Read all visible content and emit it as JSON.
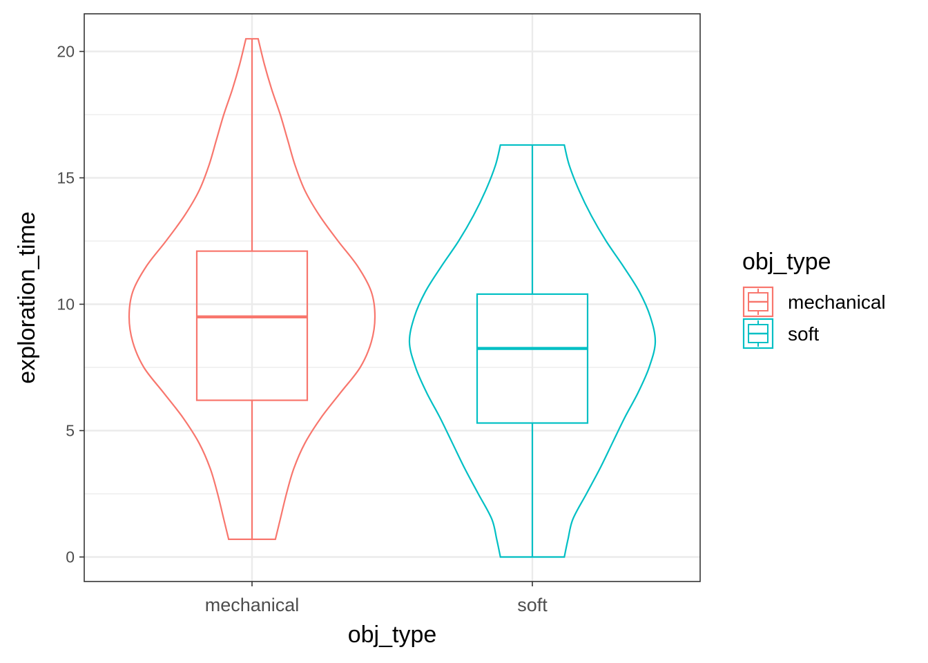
{
  "chart_data": {
    "type": "violin",
    "xlabel": "obj_type",
    "ylabel": "exploration_time",
    "ylim": [
      -1,
      21.5
    ],
    "y_ticks": [
      0,
      5,
      10,
      15,
      20
    ],
    "categories": [
      "mechanical",
      "soft"
    ],
    "colors": {
      "mechanical": "#F8766D",
      "soft": "#00BFC4"
    },
    "grid": true,
    "legend": {
      "title": "obj_type",
      "placement": "right",
      "items": [
        "mechanical",
        "soft"
      ]
    },
    "series": [
      {
        "name": "mechanical",
        "min": 0.7,
        "q1": 6.2,
        "median": 9.5,
        "q3": 12.1,
        "max": 20.5,
        "density": [
          [
            0.7,
            0.19
          ],
          [
            1.5,
            0.23
          ],
          [
            2.5,
            0.28
          ],
          [
            3.5,
            0.34
          ],
          [
            4.5,
            0.43
          ],
          [
            5.5,
            0.56
          ],
          [
            6.5,
            0.72
          ],
          [
            7.5,
            0.88
          ],
          [
            8.5,
            0.97
          ],
          [
            9.5,
            1.0
          ],
          [
            10.5,
            0.97
          ],
          [
            11.5,
            0.86
          ],
          [
            12.5,
            0.7
          ],
          [
            13.5,
            0.55
          ],
          [
            14.5,
            0.43
          ],
          [
            15.5,
            0.35
          ],
          [
            16.5,
            0.29
          ],
          [
            17.5,
            0.23
          ],
          [
            18.5,
            0.16
          ],
          [
            19.5,
            0.1
          ],
          [
            20.5,
            0.05
          ]
        ]
      },
      {
        "name": "soft",
        "min": 0.0,
        "q1": 5.3,
        "median": 8.25,
        "q3": 10.4,
        "max": 16.3,
        "density": [
          [
            0.0,
            0.26
          ],
          [
            0.7,
            0.29
          ],
          [
            1.5,
            0.33
          ],
          [
            2.5,
            0.44
          ],
          [
            3.5,
            0.55
          ],
          [
            4.5,
            0.65
          ],
          [
            5.5,
            0.75
          ],
          [
            6.5,
            0.86
          ],
          [
            7.5,
            0.95
          ],
          [
            8.5,
            1.0
          ],
          [
            9.5,
            0.96
          ],
          [
            10.5,
            0.87
          ],
          [
            11.5,
            0.74
          ],
          [
            12.5,
            0.6
          ],
          [
            13.5,
            0.48
          ],
          [
            14.5,
            0.38
          ],
          [
            15.5,
            0.3
          ],
          [
            16.3,
            0.26
          ]
        ]
      }
    ]
  }
}
